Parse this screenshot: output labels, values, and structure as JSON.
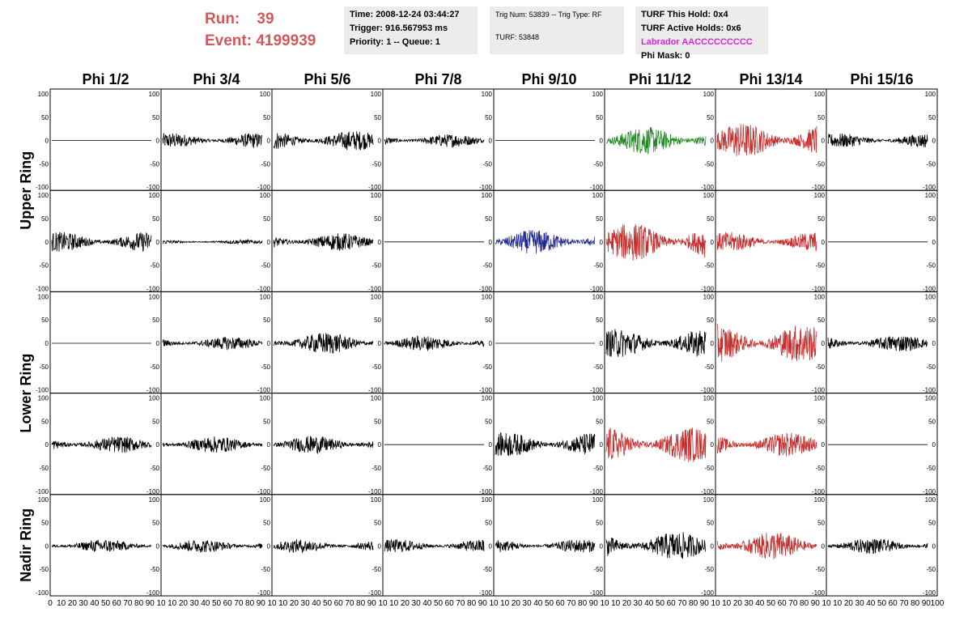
{
  "header": {
    "run_label": "Run:",
    "run_value": "39",
    "event_label": "Event:",
    "event_value": "4199939",
    "time": "Time: 2008-12-24 03:44:27",
    "trigger": "Trigger: 916.567953 ms",
    "priority": "Priority: 1 -- Queue: 1",
    "trig_num": "Trig Num: 53839 -- Trig Type: RF",
    "turf": "TURF: 53848",
    "turf_this_hold": "TURF This Hold: 0x4",
    "turf_active_holds": "TURF Active Holds: 0x6",
    "labrador": "Labrador AACCCCCCCCC",
    "phi_mask": "Phi Mask: 0"
  },
  "colors": {
    "run_text": "#d05a5a",
    "labrador_text": "#e020e0",
    "trace_default": "#000000",
    "trace_green": "#208a20",
    "trace_red": "#c83030",
    "trace_blue": "#202890"
  },
  "chart_data": {
    "type": "line",
    "columns": [
      "Phi 1/2",
      "Phi 3/4",
      "Phi 5/6",
      "Phi 7/8",
      "Phi 9/10",
      "Phi 11/12",
      "Phi 13/14",
      "Phi 15/16"
    ],
    "ring_labels": [
      {
        "label": "Upper Ring",
        "rows": [
          0,
          1
        ]
      },
      {
        "label": "Lower Ring",
        "rows": [
          2,
          3
        ]
      },
      {
        "label": "Nadir Ring",
        "rows": [
          4
        ]
      }
    ],
    "ylim": [
      -100,
      100
    ],
    "xlim": [
      0,
      100
    ],
    "y_ticks": [
      "100",
      "50",
      "0",
      "-50",
      "-100"
    ],
    "x_tick_labels": [
      "0",
      "10",
      "20",
      "30",
      "40",
      "50",
      "60",
      "70",
      "80",
      "90",
      "100"
    ],
    "x_label_strip": "0 10 20 30 40 50 60 70 80 90 10 10 20 30 40 50 60 70 80 90 10 10 20 30 40 50 60 70 80 90 10 10 20 30 40 50 60 70 80 90 10 10 20 30 40 50 60 70 80 90 10 10 20 30 40 50 60 70 80 90 10 10 20 30 40 50 60 70 80 90 10 10 20 30 40 50 60 70 80 90 100",
    "panels": [
      [
        {
          "amp": 0,
          "color": "black"
        },
        {
          "amp": 14,
          "color": "black"
        },
        {
          "amp": 18,
          "color": "black"
        },
        {
          "amp": 12,
          "color": "black"
        },
        {
          "amp": 0,
          "color": "black"
        },
        {
          "amp": 25,
          "color": "green"
        },
        {
          "amp": 32,
          "color": "red"
        },
        {
          "amp": 13,
          "color": "black"
        }
      ],
      [
        {
          "amp": 18,
          "color": "black"
        },
        {
          "amp": 4,
          "color": "black"
        },
        {
          "amp": 16,
          "color": "black"
        },
        {
          "amp": 0,
          "color": "black"
        },
        {
          "amp": 22,
          "color": "blue"
        },
        {
          "amp": 35,
          "color": "red"
        },
        {
          "amp": 18,
          "color": "red"
        },
        {
          "amp": 0,
          "color": "black"
        }
      ],
      [
        {
          "amp": 0,
          "color": "black"
        },
        {
          "amp": 12,
          "color": "black"
        },
        {
          "amp": 20,
          "color": "black"
        },
        {
          "amp": 14,
          "color": "black"
        },
        {
          "amp": 0,
          "color": "black"
        },
        {
          "amp": 26,
          "color": "black"
        },
        {
          "amp": 35,
          "color": "red"
        },
        {
          "amp": 15,
          "color": "black"
        }
      ],
      [
        {
          "amp": 15,
          "color": "black"
        },
        {
          "amp": 15,
          "color": "black"
        },
        {
          "amp": 16,
          "color": "black"
        },
        {
          "amp": 0,
          "color": "black"
        },
        {
          "amp": 22,
          "color": "black"
        },
        {
          "amp": 32,
          "color": "red"
        },
        {
          "amp": 22,
          "color": "red"
        },
        {
          "amp": 0,
          "color": "black"
        }
      ],
      [
        {
          "amp": 12,
          "color": "black"
        },
        {
          "amp": 12,
          "color": "black"
        },
        {
          "amp": 12,
          "color": "black"
        },
        {
          "amp": 12,
          "color": "black"
        },
        {
          "amp": 12,
          "color": "black"
        },
        {
          "amp": 26,
          "color": "black"
        },
        {
          "amp": 26,
          "color": "red"
        },
        {
          "amp": 14,
          "color": "black"
        }
      ]
    ]
  }
}
